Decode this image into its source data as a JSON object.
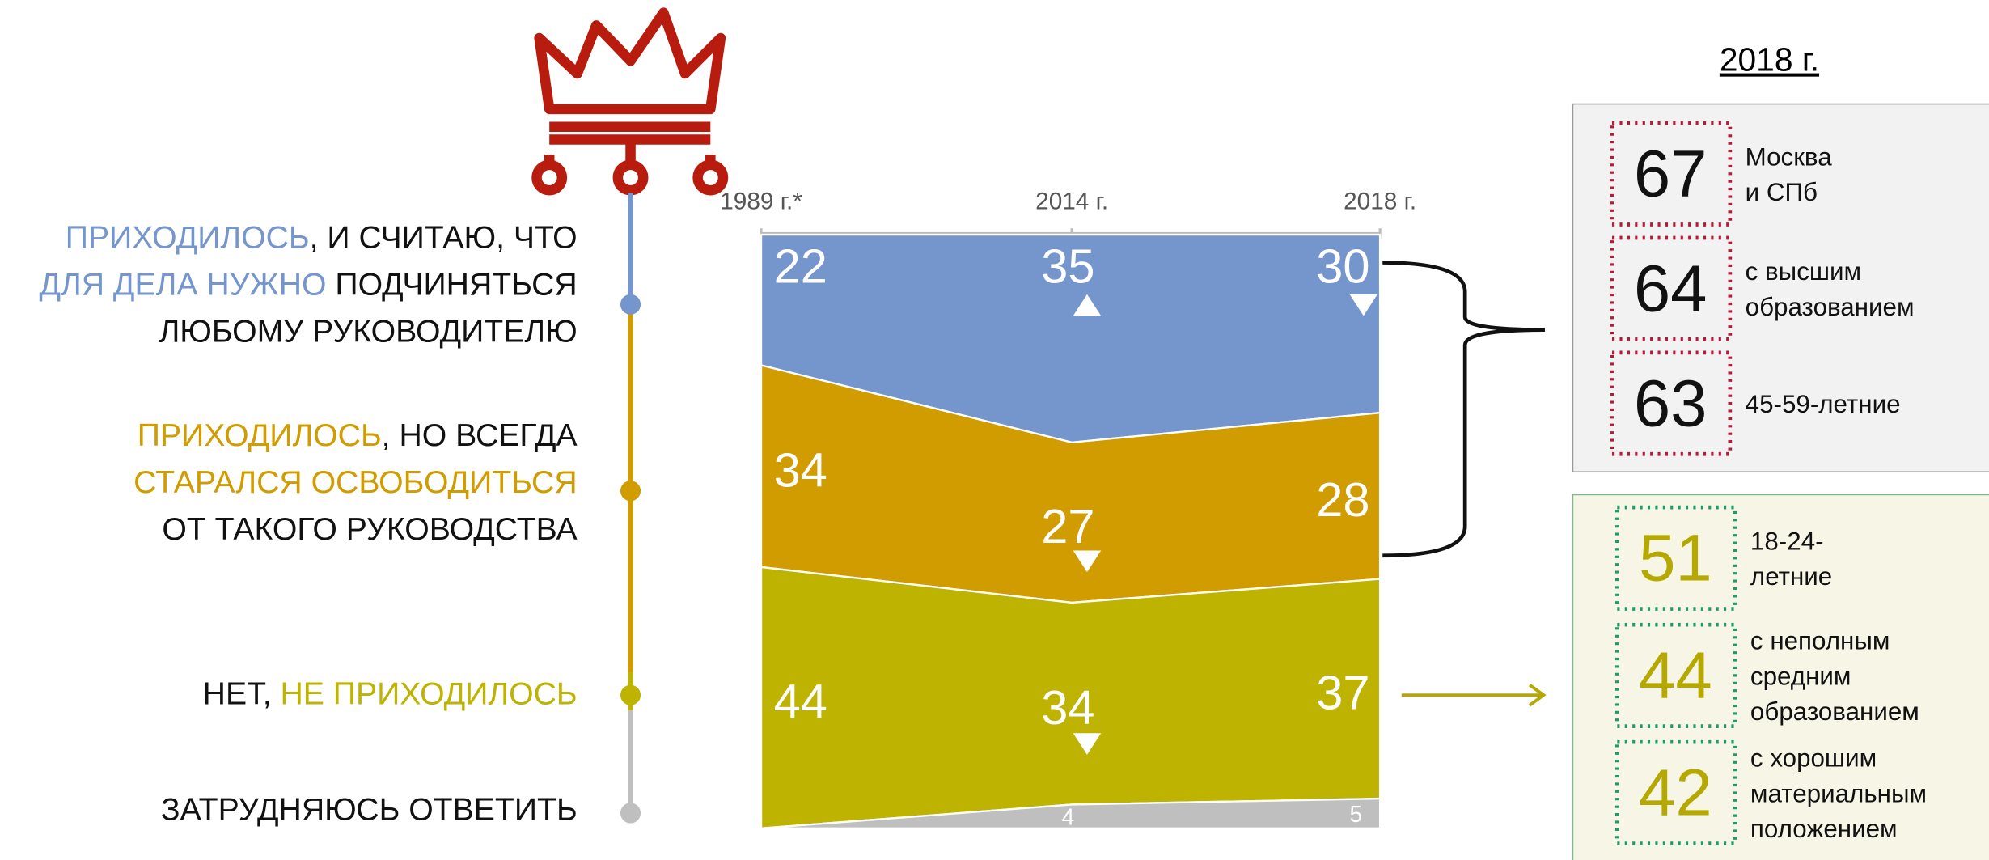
{
  "chart_data": {
    "type": "area",
    "stacked": true,
    "categories": [
      "1989 г.*",
      "2014 г.",
      "2018 г."
    ],
    "ylim": [
      0,
      100
    ],
    "series": [
      {
        "name": [
          [
            {
              "text": "ПРИХОДИЛОСЬ",
              "accent": true
            },
            {
              "text": ", И СЧИТАЮ, ЧТО",
              "accent": false
            }
          ],
          [
            {
              "text": "ДЛЯ ДЕЛА НУЖНО",
              "accent": true
            },
            {
              "text": " ПОДЧИНЯТЬСЯ",
              "accent": false
            }
          ],
          [
            {
              "text": "ЛЮБОМУ РУКОВОДИТЕЛЮ",
              "accent": false
            }
          ]
        ],
        "color": "#7596cc",
        "values": [
          22,
          35,
          30
        ]
      },
      {
        "name": [
          [
            {
              "text": "ПРИХОДИЛОСЬ",
              "accent": true
            },
            {
              "text": ", НО ВСЕГДА",
              "accent": false
            }
          ],
          [
            {
              "text": "СТАРАЛСЯ ОСВОБОДИТЬСЯ",
              "accent": true
            }
          ],
          [
            {
              "text": "ОТ ТАКОГО РУКОВОДСТВА",
              "accent": false
            }
          ]
        ],
        "color": "#d09c00",
        "values": [
          34,
          27,
          28
        ]
      },
      {
        "name": [
          [
            {
              "text": "НЕТ, ",
              "accent": false
            },
            {
              "text": "НЕ ПРИХОДИЛОСЬ",
              "accent": true
            }
          ]
        ],
        "color": "#bdb300",
        "values": [
          44,
          34,
          37
        ]
      },
      {
        "name": [
          [
            {
              "text": "ЗАТРУДНЯЮСЬ ОТВЕТИТЬ",
              "accent": false
            }
          ]
        ],
        "color": "#bfbfbf",
        "values": [
          0,
          4,
          5
        ],
        "value_labels": [
          null,
          "4",
          "5"
        ]
      }
    ]
  },
  "sidebar": {
    "title": "2018 г.",
    "groups": [
      {
        "items": [
          {
            "value": 67,
            "label": [
              "Москва",
              "и СПб"
            ]
          },
          {
            "value": 64,
            "label": [
              "с высшим",
              "образованием"
            ]
          },
          {
            "value": 63,
            "label": [
              "45-59-летние"
            ]
          }
        ]
      },
      {
        "items": [
          {
            "value": 51,
            "label": [
              "18-24-",
              "летние"
            ]
          },
          {
            "value": 44,
            "label": [
              "с неполным",
              "средним",
              "образованием"
            ]
          },
          {
            "value": 42,
            "label": [
              "с хорошим",
              "материальным",
              "положением"
            ]
          }
        ]
      }
    ]
  }
}
